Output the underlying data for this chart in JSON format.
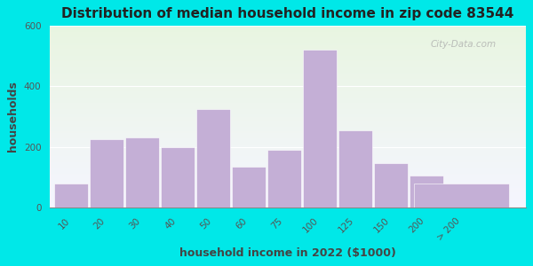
{
  "title": "Distribution of median household income in zip code 83544",
  "xlabel": "household income in 2022 ($1000)",
  "ylabel": "households",
  "bar_labels": [
    "10",
    "20",
    "30",
    "40",
    "50",
    "60",
    "75",
    "100",
    "125",
    "150",
    "200",
    "> 200"
  ],
  "bar_heights": [
    80,
    225,
    230,
    200,
    325,
    135,
    190,
    520,
    255,
    145,
    105,
    80
  ],
  "bar_color": "#c4afd6",
  "ylim": [
    0,
    600
  ],
  "yticks": [
    0,
    200,
    400,
    600
  ],
  "bg_outer": "#00e8e8",
  "title_fontsize": 11,
  "axis_label_fontsize": 9,
  "tick_fontsize": 7.5,
  "watermark_text": "City-Data.com",
  "fig_width": 6.0,
  "fig_height": 3.0,
  "fig_dpi": 100
}
